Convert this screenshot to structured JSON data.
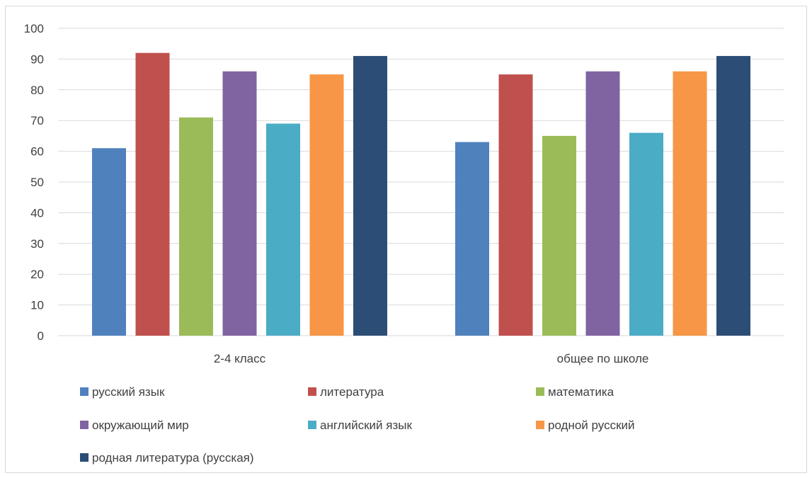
{
  "chart_data": {
    "type": "bar",
    "categories": [
      "2-4 класс",
      "общее по школе"
    ],
    "series": [
      {
        "name": "русский язык",
        "values": [
          61,
          63
        ],
        "color": "#4f81bd"
      },
      {
        "name": "литература",
        "values": [
          92,
          85
        ],
        "color": "#c0504d"
      },
      {
        "name": "математика",
        "values": [
          71,
          65
        ],
        "color": "#9bbb59"
      },
      {
        "name": "окружающий мир",
        "values": [
          86,
          86
        ],
        "color": "#8064a2"
      },
      {
        "name": "английский язык",
        "values": [
          69,
          66
        ],
        "color": "#4bacc6"
      },
      {
        "name": "родной русский",
        "values": [
          85,
          86
        ],
        "color": "#f79646"
      },
      {
        "name": "родная литература (русская)",
        "values": [
          91,
          91
        ],
        "color": "#2c4d75"
      }
    ],
    "yticks": [
      0,
      10,
      20,
      30,
      40,
      50,
      60,
      70,
      80,
      90,
      100
    ],
    "ylim": [
      0,
      100
    ],
    "grid": true,
    "legend_position": "bottom",
    "gridline_color": "#d9d9d9"
  }
}
